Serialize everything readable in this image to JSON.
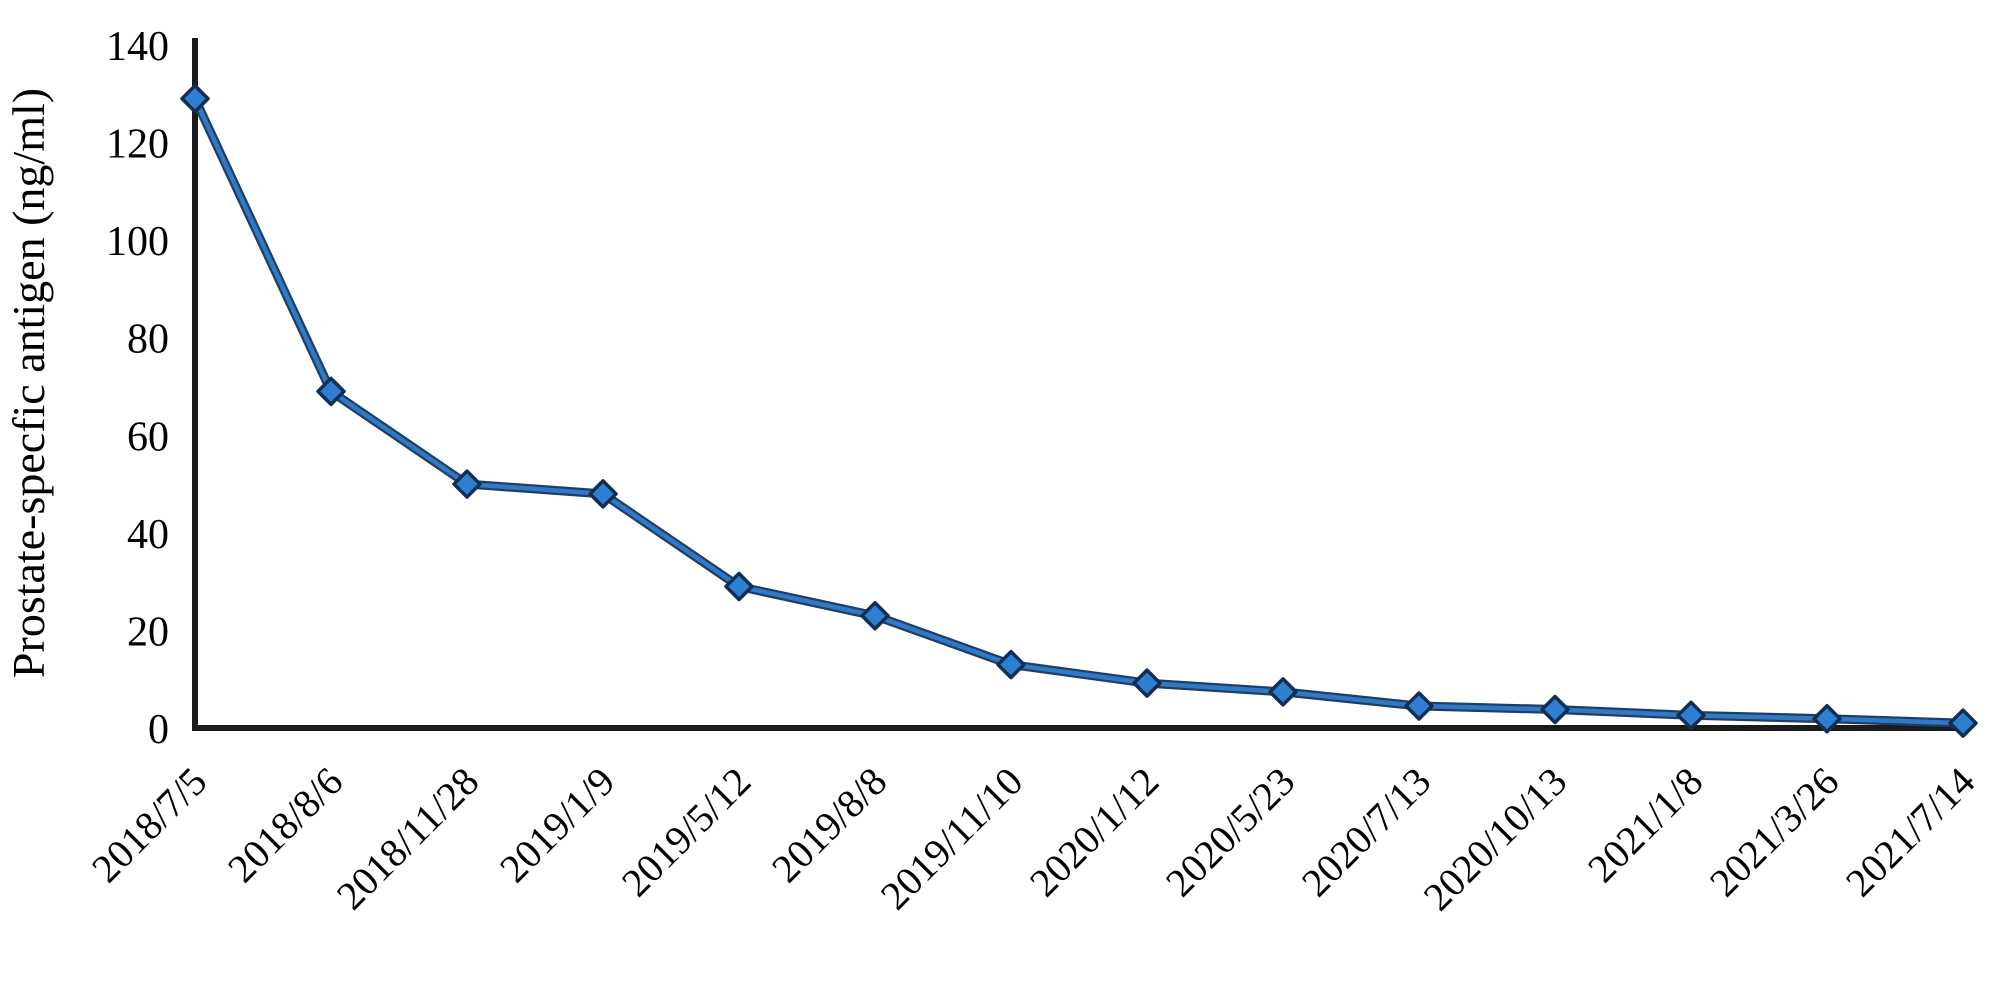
{
  "figure": {
    "background": "#ffffff"
  },
  "chart_data": {
    "type": "line",
    "title": "",
    "xlabel": "",
    "ylabel": "Prostate-specfic antigen (ng/ml)",
    "categories": [
      "2018/7/5",
      "2018/8/6",
      "2018/11/28",
      "2019/1/9",
      "2019/5/12",
      "2019/8/8",
      "2019/11/10",
      "2020/1/12",
      "2020/5/23",
      "2020/7/13",
      "2020/10/13",
      "2021/1/8",
      "2021/3/26",
      "2021/7/14"
    ],
    "values": [
      129,
      69,
      50,
      48,
      29,
      23,
      13,
      9.2,
      7.4,
      4.5,
      3.8,
      2.6,
      1.9,
      1.0
    ],
    "ylim": [
      0,
      140
    ],
    "yticks": [
      0,
      20,
      40,
      60,
      80,
      100,
      120,
      140
    ],
    "grid": false,
    "legend": "none",
    "marker": "diamond",
    "x_tick_rotation_deg": -45,
    "colors": {
      "line_core": "#3179c4",
      "line_edge": "#1d3f66",
      "marker_fill": "#2e7fd2",
      "marker_edge": "#122f52",
      "axis": "#1a1a1a",
      "text": "#000000"
    }
  }
}
